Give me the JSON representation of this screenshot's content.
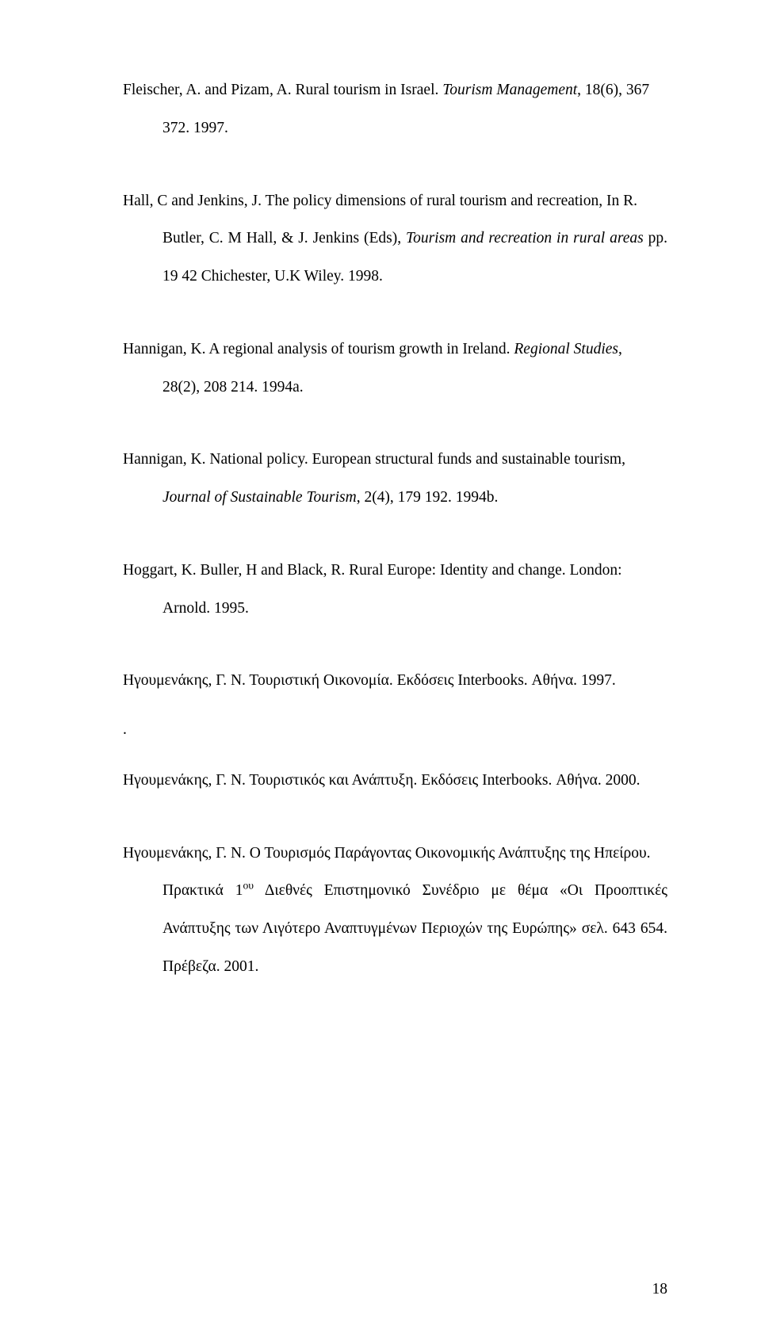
{
  "pageNumber": "18",
  "refs": [
    {
      "line1_pre": "Fleischer, A. and Pizam, A. Rural tourism in Israel. ",
      "line1_it": "Tourism Management",
      "line1_post": ", 18(6), 367",
      "cont_pre": "372. 1997.",
      "cont_it": "",
      "cont_post": ""
    },
    {
      "line1_pre": "Hall, C and Jenkins, J. The policy dimensions of rural tourism and recreation, In R.",
      "line1_it": "",
      "line1_post": "",
      "cont_pre": "Butler, C. M Hall, & J. Jenkins (Eds), ",
      "cont_it": "Tourism and recreation in rural areas",
      "cont_post": " pp. 19 42 Chichester, U.K Wiley. 1998."
    },
    {
      "line1_pre": "Hannigan, K. A regional analysis of tourism growth in Ireland. ",
      "line1_it": "Regional Studies",
      "line1_post": ",",
      "cont_pre": "28(2), 208 214. 1994a.",
      "cont_it": "",
      "cont_post": ""
    },
    {
      "line1_pre": "Hannigan, K. National policy. European structural funds and sustainable tourism,",
      "line1_it": "",
      "line1_post": "",
      "cont_pre": "",
      "cont_it": "Journal of Sustainable Tourism",
      "cont_post": ", 2(4), 179 192. 1994b."
    },
    {
      "line1_pre": "Hoggart, K. Buller, H and Black, R. Rural Europe: Identity and change. London:",
      "line1_it": "",
      "line1_post": "",
      "cont_pre": "Arnold. 1995.",
      "cont_it": "",
      "cont_post": ""
    },
    {
      "line1_pre": "Ηγουμενάκης, Γ. Ν.  Τουριστική Οικονομία. Εκδόσεις Interbooks. Αθήνα. 1997.",
      "line1_it": "",
      "line1_post": "",
      "cont_pre": "",
      "cont_it": "",
      "cont_post": ""
    }
  ],
  "dot": ".",
  "ref7": "Ηγουμενάκης, Γ. Ν.  Τουριστικός και Ανάπτυξη. Εκδόσεις Interbooks. Αθήνα. 2000.",
  "ref8_l1": "Ηγουμενάκης, Γ. Ν. Ο Τουρισμός Παράγοντας Οικονομικής Ανάπτυξης της Ηπείρου.",
  "ref8_cont_a": "Πρακτικά 1",
  "ref8_sup": "ου",
  "ref8_cont_b": " Διεθνές Επιστημονικό Συνέδριο με θέμα «Οι Προοπτικές Ανάπτυξης των Λιγότερο Αναπτυγμένων Περιοχών της Ευρώπης» σελ. 643 654. Πρέβεζα. 2001."
}
